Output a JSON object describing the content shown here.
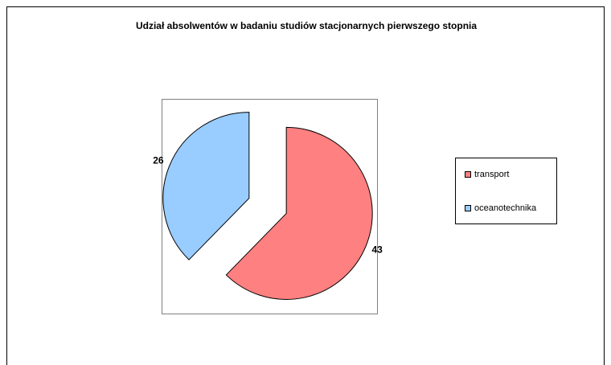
{
  "chart_data": {
    "type": "pie",
    "title": "Udział absolwentów w badaniu studiów stacjonarnych pierwszego stopnia",
    "categories": [
      "transport",
      "oceanotechnika"
    ],
    "values": [
      43,
      26
    ],
    "colors": [
      "#ff8080",
      "#99ccff"
    ],
    "legend": "right",
    "exploded": true
  }
}
